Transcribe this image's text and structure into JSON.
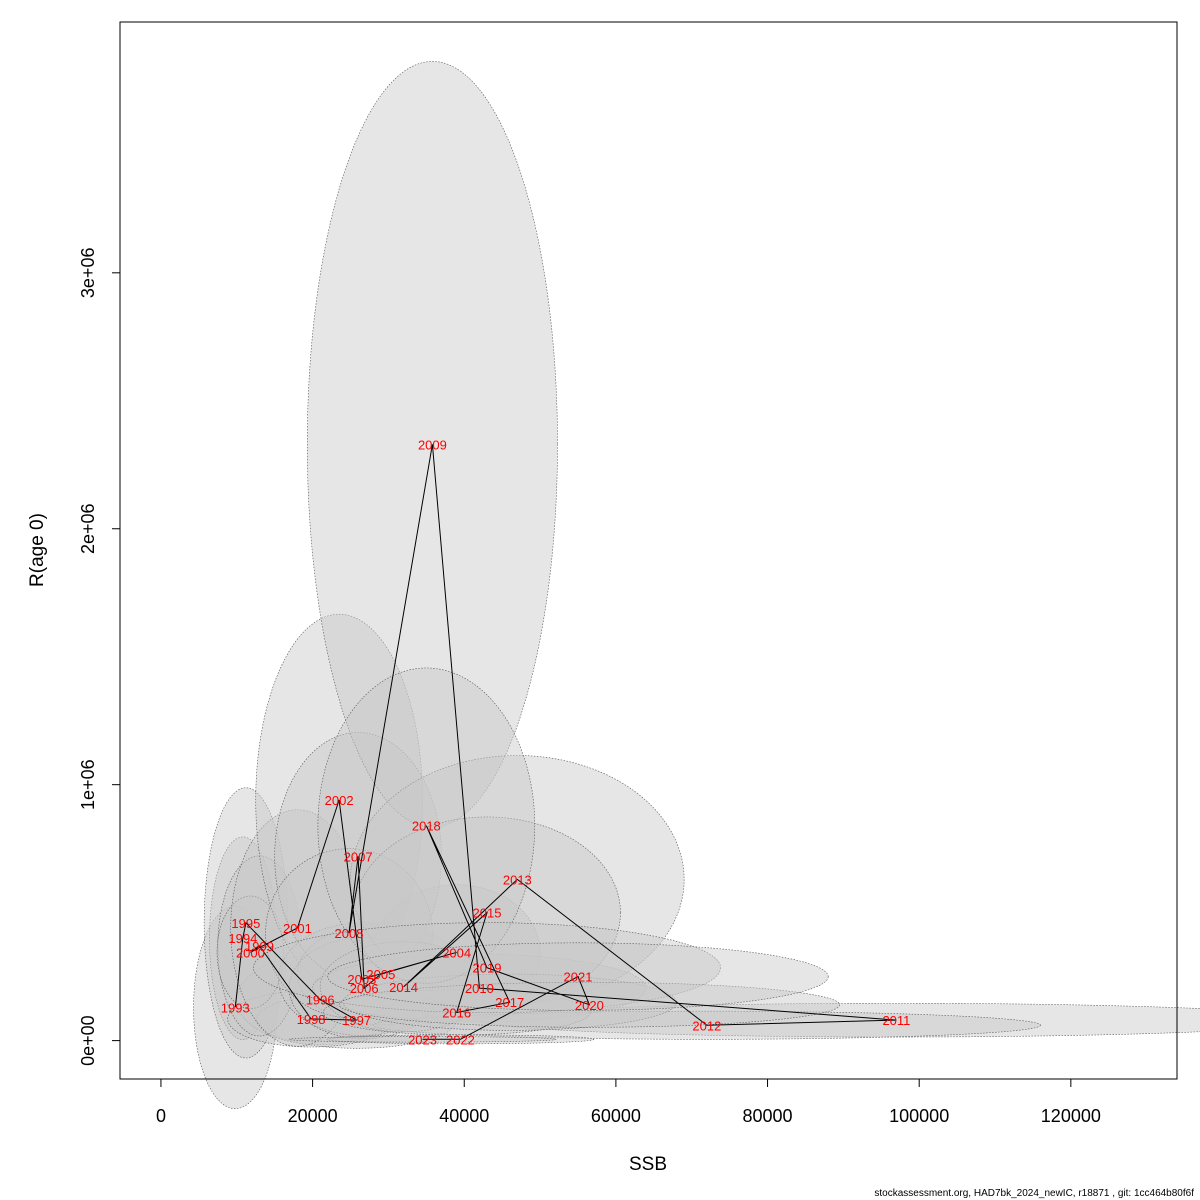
{
  "chart_data": {
    "type": "scatter",
    "title": "",
    "xlabel": "SSB",
    "ylabel": "R(age 0)",
    "xlim": [
      -5400,
      134000
    ],
    "ylim": [
      -150000,
      3980000
    ],
    "x_ticks": [
      0,
      20000,
      40000,
      60000,
      80000,
      100000,
      120000
    ],
    "x_tick_labels": [
      "0",
      "20000",
      "40000",
      "60000",
      "80000",
      "100000",
      "120000"
    ],
    "y_ticks": [
      0,
      1000000,
      2000000,
      3000000
    ],
    "y_tick_labels": [
      "0e+00",
      "1e+06",
      "2e+06",
      "3e+06"
    ],
    "grid": false,
    "legend": "none",
    "point_label_color": "#ff0000",
    "ellipse_fill": "#c8c8c8",
    "line_color": "#000000",
    "points": [
      {
        "year": "1993",
        "ssb": 9800,
        "rec": 130000,
        "sd_ssb": 2500,
        "sd_rec": 180000
      },
      {
        "year": "1994",
        "ssb": 10800,
        "rec": 400000,
        "sd_ssb": 2000,
        "sd_rec": 180000
      },
      {
        "year": "1995",
        "ssb": 11200,
        "rec": 460000,
        "sd_ssb": 2500,
        "sd_rec": 240000
      },
      {
        "year": "1996",
        "ssb": 21000,
        "rec": 160000,
        "sd_ssb": 5000,
        "sd_rec": 80000
      },
      {
        "year": "1997",
        "ssb": 25800,
        "rec": 80000,
        "sd_ssb": 6000,
        "sd_rec": 50000
      },
      {
        "year": "1998",
        "ssb": 19800,
        "rec": 85000,
        "sd_ssb": 5000,
        "sd_rec": 50000
      },
      {
        "year": "1999",
        "ssb": 13000,
        "rec": 370000,
        "sd_ssb": 2500,
        "sd_rec": 160000
      },
      {
        "year": "2000",
        "ssb": 11800,
        "rec": 345000,
        "sd_ssb": 2000,
        "sd_rec": 100000
      },
      {
        "year": "2001",
        "ssb": 18000,
        "rec": 440000,
        "sd_ssb": 4000,
        "sd_rec": 210000
      },
      {
        "year": "2002",
        "ssb": 23500,
        "rec": 940000,
        "sd_ssb": 5000,
        "sd_rec": 330000
      },
      {
        "year": "2003",
        "ssb": 26500,
        "rec": 240000,
        "sd_ssb": 5000,
        "sd_rec": 100000
      },
      {
        "year": "2004",
        "ssb": 39000,
        "rec": 345000,
        "sd_ssb": 5000,
        "sd_rec": 120000
      },
      {
        "year": "2005",
        "ssb": 29000,
        "rec": 260000,
        "sd_ssb": 5000,
        "sd_rec": 90000
      },
      {
        "year": "2006",
        "ssb": 26800,
        "rec": 205000,
        "sd_ssb": 4500,
        "sd_rec": 90000
      },
      {
        "year": "2007",
        "ssb": 26000,
        "rec": 720000,
        "sd_ssb": 5000,
        "sd_rec": 220000
      },
      {
        "year": "2008",
        "ssb": 24800,
        "rec": 420000,
        "sd_ssb": 5000,
        "sd_rec": 150000
      },
      {
        "year": "2009",
        "ssb": 35800,
        "rec": 2330000,
        "sd_ssb": 7500,
        "sd_rec": 680000
      },
      {
        "year": "2010",
        "ssb": 42000,
        "rec": 205000,
        "sd_ssb": 10000,
        "sd_rec": 60000
      },
      {
        "year": "2011",
        "ssb": 97000,
        "rec": 80000,
        "sd_ssb": 25000,
        "sd_rec": 30000
      },
      {
        "year": "2012",
        "ssb": 72000,
        "rec": 60000,
        "sd_ssb": 20000,
        "sd_rec": 25000
      },
      {
        "year": "2013",
        "ssb": 47000,
        "rec": 630000,
        "sd_ssb": 10000,
        "sd_rec": 220000
      },
      {
        "year": "2014",
        "ssb": 32000,
        "rec": 210000,
        "sd_ssb": 5000,
        "sd_rec": 80000
      },
      {
        "year": "2015",
        "ssb": 43000,
        "rec": 500000,
        "sd_ssb": 8000,
        "sd_rec": 170000
      },
      {
        "year": "2016",
        "ssb": 39000,
        "rec": 110000,
        "sd_ssb": 8000,
        "sd_rec": 40000
      },
      {
        "year": "2017",
        "ssb": 46000,
        "rec": 150000,
        "sd_ssb": 10000,
        "sd_rec": 50000
      },
      {
        "year": "2018",
        "ssb": 35000,
        "rec": 840000,
        "sd_ssb": 6500,
        "sd_rec": 280000
      },
      {
        "year": "2019",
        "ssb": 43000,
        "rec": 285000,
        "sd_ssb": 14000,
        "sd_rec": 80000
      },
      {
        "year": "2020",
        "ssb": 56500,
        "rec": 140000,
        "sd_ssb": 15000,
        "sd_rec": 40000
      },
      {
        "year": "2021",
        "ssb": 55000,
        "rec": 250000,
        "sd_ssb": 15000,
        "sd_rec": 60000
      },
      {
        "year": "2022",
        "ssb": 39500,
        "rec": 5000,
        "sd_ssb": 8000,
        "sd_rec": 8000
      },
      {
        "year": "2023",
        "ssb": 34500,
        "rec": 5000,
        "sd_ssb": 8000,
        "sd_rec": 5000
      }
    ]
  },
  "footer": "stockassessment.org, HAD7bk_2024_newIC, r18871 , git: 1cc464b80f6f"
}
